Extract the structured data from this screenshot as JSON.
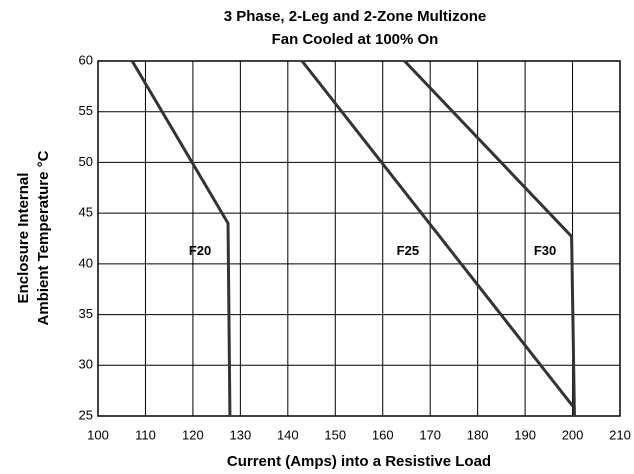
{
  "chart_data": {
    "type": "line",
    "title": [
      "3 Phase, 2-Leg and 2-Zone Multizone",
      "Fan Cooled at 100% On"
    ],
    "xlabel": "Current (Amps) into a Resistive Load",
    "ylabel": [
      "Enclosure Internal",
      "Ambient Temperature °C"
    ],
    "series": [
      {
        "color": "#333333",
        "x": [
          107.2,
          127.4,
          127.8
        ],
        "values": [
          60,
          44,
          25
        ]
      },
      {
        "color": "#333333",
        "x": [
          143,
          200
        ],
        "values": [
          60,
          26
        ]
      },
      {
        "color": "#333333",
        "x": [
          164.6,
          199.8,
          200.4
        ],
        "values": [
          60,
          42.7,
          25
        ]
      }
    ],
    "annotations": [
      {
        "text": "F20",
        "x": 121.5,
        "y": 41.2
      },
      {
        "text": "F25",
        "x": 165.3,
        "y": 41.2
      },
      {
        "text": "F30",
        "x": 194.2,
        "y": 41.2
      }
    ],
    "xlim": [
      100,
      210
    ],
    "xticks": [
      100,
      110,
      120,
      130,
      140,
      150,
      160,
      170,
      180,
      190,
      200,
      210
    ],
    "ylim": [
      25,
      60
    ],
    "yticks": [
      25,
      30,
      35,
      40,
      45,
      50,
      55,
      60
    ],
    "grid": true
  }
}
